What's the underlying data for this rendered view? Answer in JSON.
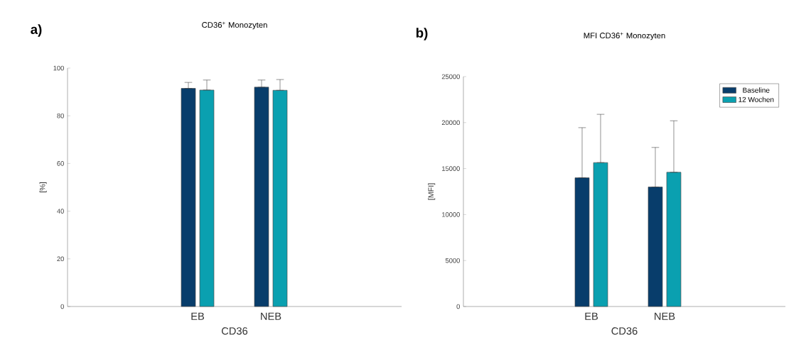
{
  "chart_data": [
    {
      "type": "bar",
      "title": "CD36$^{+}$ Monozyten",
      "xlabel": "CD36",
      "ylabel": "[%]",
      "categories": [
        "EB",
        "NEB"
      ],
      "series": [
        {
          "color": "#083d6b",
          "values": [
            91.5,
            92
          ],
          "errors": [
            [
              91.5,
              94
            ],
            [
              92,
              95
            ]
          ]
        },
        {
          "color": "#0aa0b0",
          "values": [
            90.8,
            90.7
          ],
          "errors": [
            [
              90.8,
              95
            ],
            [
              90.7,
              95.2
            ]
          ]
        }
      ],
      "ylim": [
        0,
        100
      ],
      "yticks": [
        0,
        20,
        40,
        60,
        80,
        100
      ],
      "legend": false,
      "annotations": [
        "a)"
      ]
    },
    {
      "type": "bar",
      "title": "MFI CD36$^{+}$ Monozyten",
      "xlabel": "CD36",
      "ylabel": "[MFI]",
      "categories": [
        "EB",
        "NEB"
      ],
      "series": [
        {
          "name": "Baseline",
          "color": "#083d6b",
          "values": [
            14000,
            13000
          ],
          "errors": [
            [
              14000,
              19450
            ],
            [
              13000,
              17300
            ]
          ]
        },
        {
          "name": "12 Wochen",
          "color": "#0aa0b0",
          "values": [
            15650,
            14600
          ],
          "errors": [
            [
              15650,
              20900
            ],
            [
              14600,
              20200
            ]
          ]
        }
      ],
      "ylim": [
        0,
        25000
      ],
      "yticks": [
        0,
        5000,
        10000,
        15000,
        20000,
        25000
      ],
      "legend": "top right",
      "annotations": [
        "b)"
      ]
    }
  ]
}
